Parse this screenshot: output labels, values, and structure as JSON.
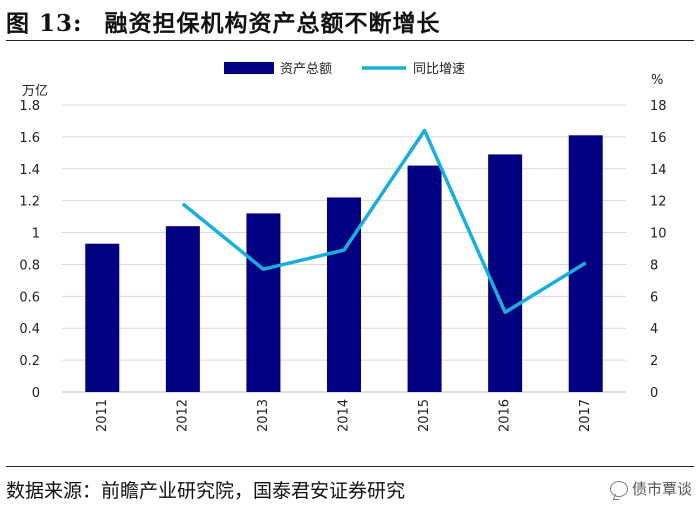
{
  "header": {
    "figure_label": "图 13:",
    "title": "融资担保机构资产总额不断增长"
  },
  "footer": {
    "source": "数据来源：前瞻产业研究院，国泰君安证券研究",
    "watermark": "债市覃谈"
  },
  "colors": {
    "bar": "#000080",
    "line": "#1AAEDB",
    "grid": "#d9d9d9",
    "axis": "#bfbfbf"
  },
  "chart_data": {
    "type": "bar+line",
    "categories": [
      "2011",
      "2012",
      "2013",
      "2014",
      "2015",
      "2016",
      "2017"
    ],
    "series": [
      {
        "name": "资产总额",
        "type": "bar",
        "axis": "left",
        "values": [
          0.93,
          1.04,
          1.12,
          1.22,
          1.42,
          1.49,
          1.61
        ]
      },
      {
        "name": "同比增速",
        "type": "line",
        "axis": "right",
        "values": [
          null,
          11.8,
          7.7,
          8.9,
          16.4,
          5.0,
          8.1
        ]
      }
    ],
    "left_axis": {
      "unit": "万亿",
      "min": 0,
      "max": 1.8,
      "step": 0.2,
      "ticks": [
        "0",
        "0.2",
        "0.4",
        "0.6",
        "0.8",
        "1",
        "1.2",
        "1.4",
        "1.6",
        "1.8"
      ]
    },
    "right_axis": {
      "unit": "%",
      "min": 0,
      "max": 18,
      "step": 2,
      "ticks": [
        "0",
        "2",
        "4",
        "6",
        "8",
        "10",
        "12",
        "14",
        "16",
        "18"
      ]
    },
    "legend_position": "top-center",
    "grid": true
  }
}
